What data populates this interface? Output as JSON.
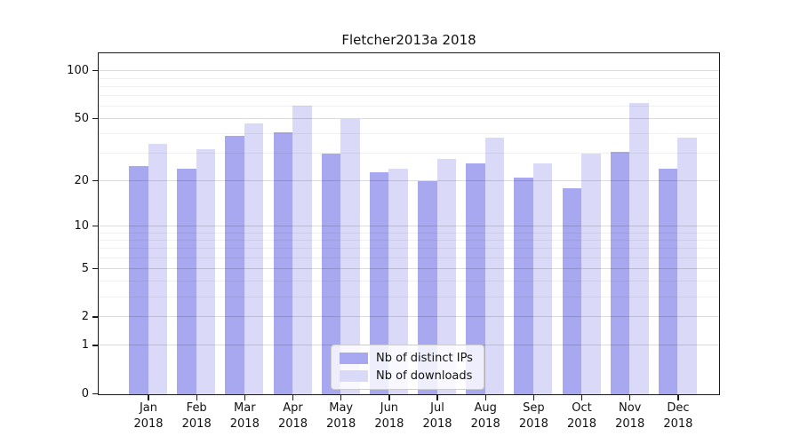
{
  "title": "Fletcher2013a 2018",
  "colors": {
    "distinct_ips_bar": "#a8a8f0",
    "downloads_bar": "#dadaf8",
    "axis_spine": "#1a1a1a"
  },
  "legend": {
    "items": [
      {
        "label": "Nb of distinct IPs",
        "color": "#a8a8f0"
      },
      {
        "label": "Nb of downloads",
        "color": "#dadaf8"
      }
    ]
  },
  "chart_data": {
    "type": "bar",
    "title": "Fletcher2013a 2018",
    "scale": "symlog (log1p)",
    "grid": true,
    "legend_position": "lower center",
    "categories": [
      "Jan 2018",
      "Feb 2018",
      "Mar 2018",
      "Apr 2018",
      "May 2018",
      "Jun 2018",
      "Jul 2018",
      "Aug 2018",
      "Sep 2018",
      "Oct 2018",
      "Nov 2018",
      "Dec 2018"
    ],
    "months": [
      "Jan",
      "Feb",
      "Mar",
      "Apr",
      "May",
      "Jun",
      "Jul",
      "Aug",
      "Sep",
      "Oct",
      "Nov",
      "Dec"
    ],
    "year_label": "2018",
    "series": [
      {
        "name": "Nb of distinct IPs",
        "color": "#a8a8f0",
        "values": [
          25,
          24,
          39,
          41,
          30,
          23,
          20,
          26,
          21,
          18,
          31,
          24
        ]
      },
      {
        "name": "Nb of downloads",
        "color": "#dadaf8",
        "values": [
          35,
          32,
          47,
          61,
          50,
          24,
          28,
          38,
          26,
          30,
          63,
          38
        ]
      }
    ],
    "ylim": [
      0,
      128
    ],
    "yticks": [
      0,
      1,
      2,
      5,
      10,
      20,
      50,
      100
    ],
    "ytick_labels": [
      "0",
      "1",
      "2",
      "5",
      "10",
      "20",
      "50",
      "100"
    ],
    "minor_gridlines": [
      3,
      4,
      6,
      7,
      8,
      9,
      30,
      40,
      60,
      70,
      80,
      90
    ],
    "xlabel": "",
    "ylabel": ""
  }
}
